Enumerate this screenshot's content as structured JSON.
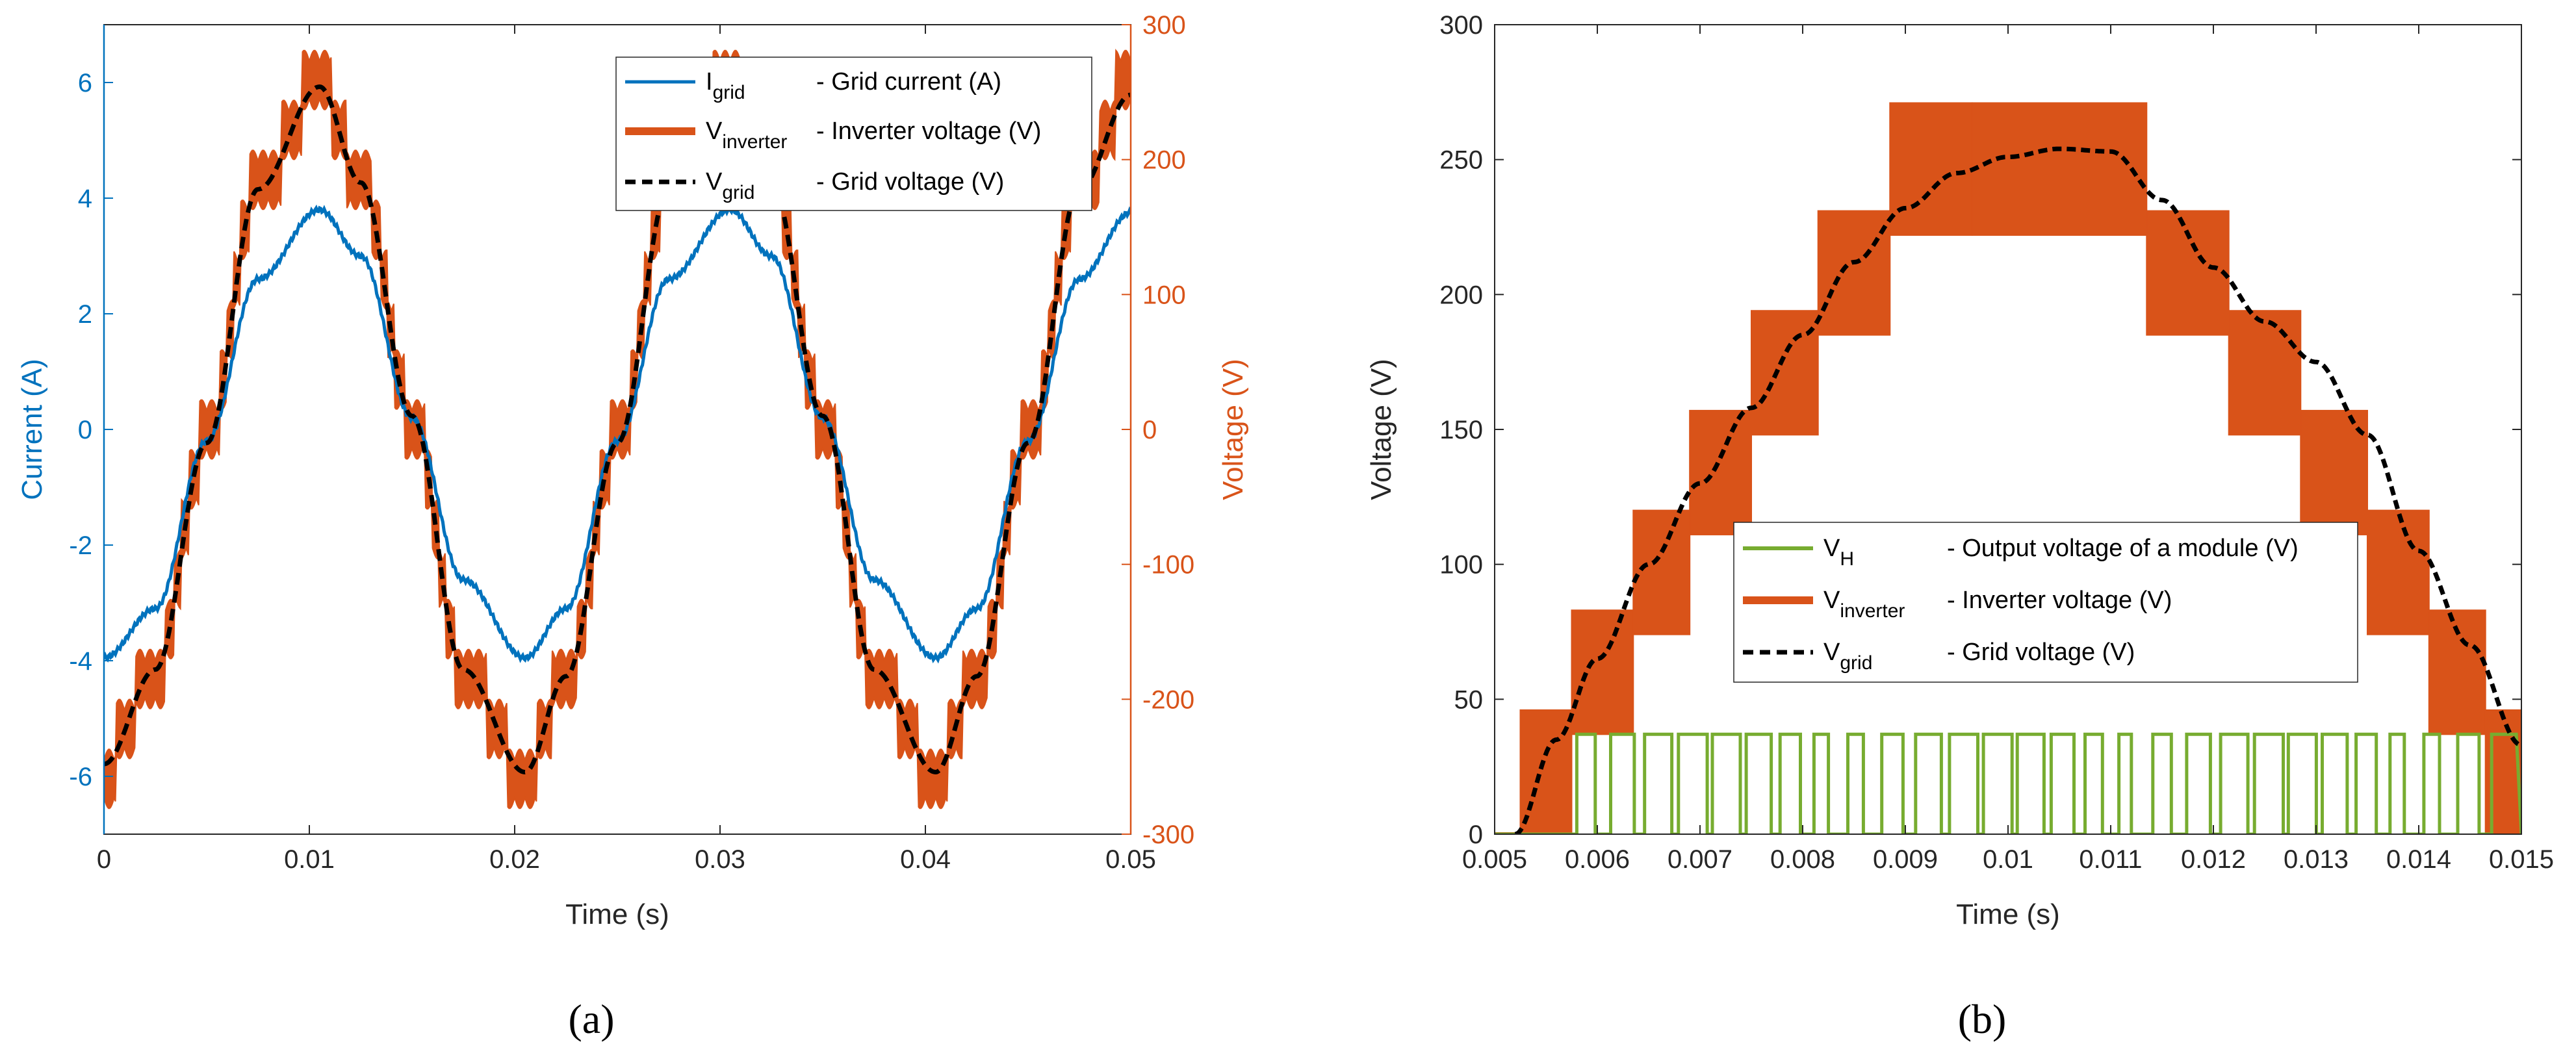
{
  "panel_labels": [
    "(a)",
    "(b)"
  ],
  "colors": {
    "blue": "#0072BD",
    "orange": "#D95319",
    "black": "#000000",
    "green": "#77AC30"
  },
  "chart_data": [
    {
      "type": "line",
      "panel": "(a)",
      "xlabel": "Time (s)",
      "ylabel_left": "Current (A)",
      "ylabel_right": "Voltage (V)",
      "xlim": [
        0,
        0.05
      ],
      "ylim_left": [
        -7,
        7
      ],
      "ylim_right": [
        -300,
        300
      ],
      "x_ticks": [
        "0",
        "0.01",
        "0.02",
        "0.03",
        "0.04",
        "0.05"
      ],
      "y_ticks_left": [
        "-6",
        "-4",
        "-2",
        "0",
        "2",
        "4",
        "6"
      ],
      "y_ticks_right": [
        "-300",
        "-200",
        "-100",
        "0",
        "100",
        "200",
        "300"
      ],
      "legend_position": "top-right",
      "series": [
        {
          "main": "I",
          "sub": "grid",
          "desc": "- Grid current (A)",
          "color": "#0072BD",
          "style": "solid",
          "axis": "left",
          "x": [
            0,
            0.0025,
            0.005,
            0.0075,
            0.0105,
            0.0125,
            0.015,
            0.0175,
            0.0205,
            0.0225,
            0.025,
            0.0275,
            0.0305,
            0.0325,
            0.035,
            0.0375,
            0.0405,
            0.0425,
            0.045,
            0.0475,
            0.05
          ],
          "y": [
            -3.95,
            -3.1,
            -0.2,
            2.6,
            3.8,
            3.0,
            0.2,
            -2.6,
            -3.95,
            -3.1,
            -0.2,
            2.6,
            3.8,
            3.0,
            0.2,
            -2.6,
            -3.95,
            -3.1,
            -0.2,
            2.6,
            3.75
          ]
        },
        {
          "main": "V",
          "sub": "inverter",
          "desc": "- Inverter voltage (V)",
          "color": "#D95319",
          "style": "staircase",
          "axis": "right",
          "x": [
            0,
            0.0025,
            0.005,
            0.0075,
            0.0105,
            0.0125,
            0.015,
            0.0175,
            0.0205,
            0.0225,
            0.025,
            0.0275,
            0.0305,
            0.0325,
            0.035,
            0.0375,
            0.0405,
            0.0425,
            0.045,
            0.0475,
            0.05
          ],
          "y": [
            -250,
            -180,
            -10,
            180,
            255,
            185,
            10,
            -180,
            -255,
            -185,
            -10,
            180,
            255,
            185,
            10,
            -180,
            -255,
            -185,
            -10,
            180,
            255
          ]
        },
        {
          "main": "V",
          "sub": "grid",
          "desc": "- Grid voltage (V)",
          "color": "#000000",
          "style": "dashed",
          "axis": "right",
          "x": [
            0,
            0.0025,
            0.005,
            0.0075,
            0.0105,
            0.0125,
            0.015,
            0.0175,
            0.0205,
            0.0225,
            0.025,
            0.0275,
            0.0305,
            0.0325,
            0.035,
            0.0375,
            0.0405,
            0.0425,
            0.045,
            0.0475,
            0.05
          ],
          "y": [
            -248,
            -178,
            -10,
            178,
            254,
            183,
            10,
            -178,
            -254,
            -183,
            -10,
            178,
            254,
            183,
            10,
            -178,
            -254,
            -183,
            -10,
            178,
            248
          ]
        }
      ]
    },
    {
      "type": "line",
      "panel": "(b)",
      "xlabel": "Time (s)",
      "ylabel": "Voltage (V)",
      "xlim": [
        0.005,
        0.015
      ],
      "ylim": [
        0,
        300
      ],
      "x_ticks": [
        "0.005",
        "0.006",
        "0.007",
        "0.008",
        "0.009",
        "0.01",
        "0.011",
        "0.012",
        "0.013",
        "0.014",
        "0.015"
      ],
      "y_ticks": [
        "0",
        "50",
        "100",
        "150",
        "200",
        "250",
        "300"
      ],
      "legend_position": "lower-center",
      "series": [
        {
          "main": "V",
          "sub": "H",
          "desc": "- Output voltage of a module (V)",
          "color": "#77AC30",
          "style": "pwm",
          "levels": [
            0,
            37
          ],
          "active_from": 0.0058
        },
        {
          "main": "V",
          "sub": "inverter",
          "desc": "- Inverter voltage (V)",
          "color": "#D95319",
          "style": "staircase",
          "steps": [
            {
              "x0": 0.005,
              "x1": 0.00525,
              "v": 0
            },
            {
              "x0": 0.00525,
              "x1": 0.00575,
              "v": 37
            },
            {
              "x0": 0.00575,
              "x1": 0.00635,
              "v": 74
            },
            {
              "x0": 0.00635,
              "x1": 0.0069,
              "v": 111
            },
            {
              "x0": 0.0069,
              "x1": 0.0075,
              "v": 148
            },
            {
              "x0": 0.0075,
              "x1": 0.00815,
              "v": 185
            },
            {
              "x0": 0.00815,
              "x1": 0.00885,
              "v": 222
            },
            {
              "x0": 0.00885,
              "x1": 0.00965,
              "v": 259
            },
            {
              "x0": 0.00965,
              "x1": 0.01135,
              "v": 259
            },
            {
              "x0": 0.01135,
              "x1": 0.01215,
              "v": 222
            },
            {
              "x0": 0.01215,
              "x1": 0.01285,
              "v": 185
            },
            {
              "x0": 0.01285,
              "x1": 0.0135,
              "v": 148
            },
            {
              "x0": 0.0135,
              "x1": 0.0141,
              "v": 111
            },
            {
              "x0": 0.0141,
              "x1": 0.01465,
              "v": 74
            },
            {
              "x0": 0.01465,
              "x1": 0.015,
              "v": 37
            }
          ]
        },
        {
          "main": "V",
          "sub": "grid",
          "desc": "- Grid voltage (V)",
          "color": "#000000",
          "style": "dashed",
          "x": [
            0.0052,
            0.0056,
            0.006,
            0.0065,
            0.007,
            0.0075,
            0.008,
            0.0085,
            0.009,
            0.0095,
            0.01,
            0.0105,
            0.011,
            0.0115,
            0.012,
            0.0125,
            0.013,
            0.0135,
            0.014,
            0.0145,
            0.015
          ],
          "y": [
            0,
            35,
            65,
            100,
            130,
            158,
            185,
            212,
            232,
            245,
            251,
            254,
            253,
            235,
            210,
            190,
            175,
            148,
            105,
            70,
            33
          ]
        }
      ]
    }
  ]
}
